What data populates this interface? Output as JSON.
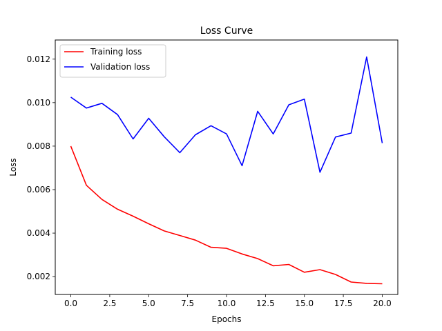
{
  "chart_data": {
    "type": "line",
    "title": "Loss Curve",
    "xlabel": "Epochs",
    "ylabel": "Loss",
    "xlim": [
      -1.0,
      21.0
    ],
    "ylim": [
      0.00118,
      0.01288
    ],
    "xticks": [
      0.0,
      2.5,
      5.0,
      7.5,
      10.0,
      12.5,
      15.0,
      17.5,
      20.0
    ],
    "xtick_labels": [
      "0.0",
      "2.5",
      "5.0",
      "7.5",
      "10.0",
      "12.5",
      "15.0",
      "17.5",
      "20.0"
    ],
    "yticks": [
      0.002,
      0.004,
      0.006,
      0.008,
      0.01,
      0.012
    ],
    "ytick_labels": [
      "0.002",
      "0.004",
      "0.006",
      "0.008",
      "0.010",
      "0.012"
    ],
    "grid": false,
    "legend_position": "top-left",
    "x": [
      0,
      1,
      2,
      3,
      4,
      5,
      6,
      7,
      8,
      9,
      10,
      11,
      12,
      13,
      14,
      15,
      16,
      17,
      18,
      19,
      20
    ],
    "series": [
      {
        "name": "Training loss",
        "color": "#ff0000",
        "values": [
          0.008,
          0.0062,
          0.00555,
          0.0051,
          0.00478,
          0.00443,
          0.0041,
          0.00389,
          0.00368,
          0.00335,
          0.0033,
          0.00304,
          0.00283,
          0.0025,
          0.00256,
          0.0022,
          0.00232,
          0.0021,
          0.00175,
          0.00169,
          0.00167
        ]
      },
      {
        "name": "Validation loss",
        "color": "#0000ff",
        "values": [
          0.01025,
          0.00975,
          0.00997,
          0.00945,
          0.00833,
          0.00928,
          0.00843,
          0.0077,
          0.00852,
          0.00894,
          0.00856,
          0.0071,
          0.0096,
          0.00856,
          0.0099,
          0.01016,
          0.0068,
          0.00842,
          0.0086,
          0.0121,
          0.00814
        ]
      }
    ]
  }
}
